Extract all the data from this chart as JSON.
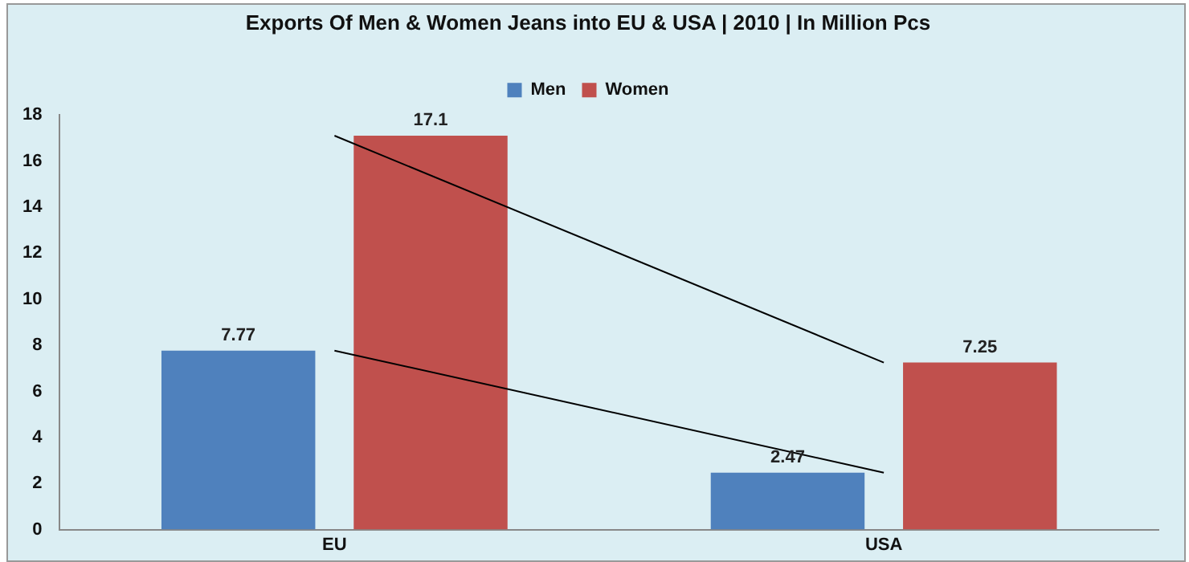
{
  "chart_data": {
    "type": "bar",
    "title": "Exports Of Men & Women Jeans into EU & USA | 2010 | In Million Pcs",
    "categories": [
      "EU",
      "USA"
    ],
    "series": [
      {
        "name": "Men",
        "color": "#4f81bd",
        "values": [
          7.77,
          2.47
        ],
        "value_labels": [
          "7.77",
          "2.47"
        ]
      },
      {
        "name": "Women",
        "color": "#c0504d",
        "values": [
          17.1,
          7.25
        ],
        "value_labels": [
          "17.1",
          "7.25"
        ]
      },
      {
        "type": "line",
        "color": "#000000",
        "values": [
          17.1,
          7.25
        ]
      },
      {
        "type": "line",
        "color": "#000000",
        "values": [
          7.77,
          2.47
        ]
      }
    ],
    "ylim": [
      0,
      18
    ],
    "yticks": [
      0,
      2,
      4,
      6,
      8,
      10,
      12,
      14,
      16,
      18
    ],
    "grid": false,
    "legend": "top",
    "marker": "none"
  }
}
